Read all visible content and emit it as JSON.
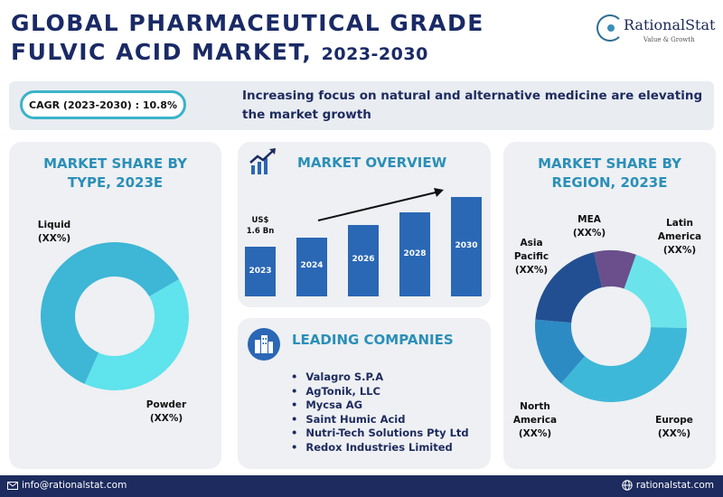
{
  "header": {
    "title_line1": "GLOBAL PHARMACEUTICAL GRADE",
    "title_line2": "FULVIC ACID MARKET,",
    "title_years": "2023-2030",
    "brand": "RationalStat",
    "brand_tagline": "Value & Growth"
  },
  "banner": {
    "cagr": "CAGR (2023-2030) : 10.8%",
    "headline": "Increasing focus on natural and alternative medicine are elevating the market growth"
  },
  "type_card": {
    "title_line1": "MARKET SHARE BY",
    "title_line2": "TYPE, 2023E"
  },
  "overview_card": {
    "title": "MARKET OVERVIEW",
    "value_line1": "US$",
    "value_line2": "1.6 Bn"
  },
  "region_card": {
    "title_line1": "MARKET SHARE BY",
    "title_line2": "REGION, 2023E"
  },
  "companies_card": {
    "title": "LEADING COMPANIES",
    "items": [
      "Valagro S.P.A",
      "AgTonik, LLC",
      "Mycsa AG",
      "Saint Humic Acid",
      "Nutri-Tech Solutions Pty Ltd",
      "Redox Industries Limited"
    ]
  },
  "footer": {
    "email": "info@rationalstat.com",
    "website": "rationalstat.com"
  },
  "colors": {
    "navy": "#1d2b5e",
    "accent": "#2b8fb8",
    "bar": "#2a67b5",
    "cagr_border": "#3ab3c9"
  },
  "chart_data": [
    {
      "type": "pie",
      "title": "MARKET SHARE BY TYPE, 2023E",
      "categories": [
        "Liquid",
        "Powder"
      ],
      "values": [
        40,
        60
      ],
      "value_labels": [
        "(XX%)",
        "(XX%)"
      ],
      "colors": [
        "#5fe3ec",
        "#3eb6d6"
      ]
    },
    {
      "type": "bar",
      "title": "MARKET OVERVIEW",
      "categories": [
        "2023",
        "2024",
        "2026",
        "2028",
        "2030"
      ],
      "values": [
        1.6,
        1.9,
        2.3,
        2.7,
        3.2
      ],
      "annotation": "US$ 1.6 Bn",
      "trend": "increasing"
    },
    {
      "type": "pie",
      "title": "MARKET SHARE BY REGION, 2023E",
      "categories": [
        "MEA",
        "Latin America",
        "Europe",
        "North America",
        "Asia Pacific"
      ],
      "label_lines": [
        [
          "MEA",
          "(XX%)"
        ],
        [
          "Latin",
          "America",
          "(XX%)"
        ],
        [
          "Europe",
          "(XX%)"
        ],
        [
          "North",
          "America",
          "(XX%)"
        ],
        [
          "Asia",
          "Pacific",
          "(XX%)"
        ]
      ],
      "values": [
        9,
        20,
        36,
        15,
        20
      ],
      "colors": [
        "#6a4f8c",
        "#6ae4ea",
        "#3eb8d9",
        "#2d8bc4",
        "#224f92"
      ]
    }
  ]
}
